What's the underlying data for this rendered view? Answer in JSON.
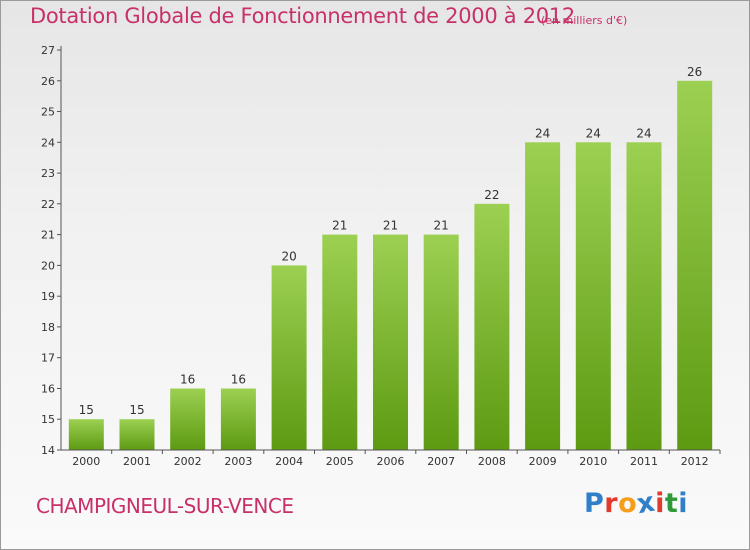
{
  "header": {
    "title": "Dotation Globale de Fonctionnement de 2000 à 2012",
    "unit": "(en milliers d'€)"
  },
  "footer": {
    "commune": "CHAMPIGNEUL-SUR-VENCE",
    "logo_letters": [
      "P",
      "r",
      "o",
      "x",
      "i",
      "t",
      "i"
    ],
    "logo_colors": [
      "#2f7fc9",
      "#e23a2b",
      "#f59e1b",
      "#2f7fc9",
      "#e23a2b",
      "#2f9a3a",
      "#2f7fc9"
    ]
  },
  "colors": {
    "title": "#c8306a",
    "bar_top": "#9cd052",
    "bar_bottom": "#5d9a12",
    "axis": "#555555"
  },
  "chart_data": {
    "type": "bar",
    "title": "Dotation Globale de Fonctionnement de 2000 à 2012",
    "xlabel": "",
    "ylabel": "",
    "categories": [
      "2000",
      "2001",
      "2002",
      "2003",
      "2004",
      "2005",
      "2006",
      "2007",
      "2008",
      "2009",
      "2010",
      "2011",
      "2012"
    ],
    "values": [
      15,
      15,
      16,
      16,
      20,
      21,
      21,
      21,
      22,
      24,
      24,
      24,
      26
    ],
    "ylim": [
      14,
      27
    ],
    "yticks": [
      14,
      15,
      16,
      17,
      18,
      19,
      20,
      21,
      22,
      23,
      24,
      25,
      26,
      27
    ],
    "grid": false,
    "data_labels": true
  }
}
